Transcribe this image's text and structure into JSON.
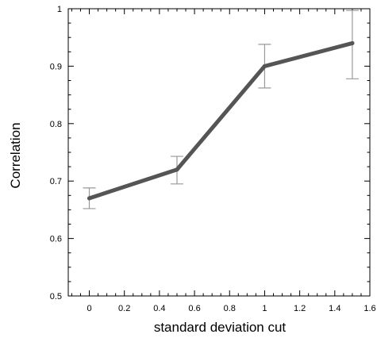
{
  "chart_data": {
    "type": "line",
    "title": "",
    "xlabel": "standard deviation  cut",
    "ylabel": "Correlation",
    "xlim": [
      -0.12,
      1.6
    ],
    "ylim": [
      0.5,
      1.0
    ],
    "x_ticks": [
      {
        "value": 0,
        "label": "0"
      },
      {
        "value": 0.2,
        "label": "0.2"
      },
      {
        "value": 0.4,
        "label": "0.4"
      },
      {
        "value": 0.6,
        "label": "0.6"
      },
      {
        "value": 0.8,
        "label": "0.8"
      },
      {
        "value": 1.0,
        "label": "1"
      },
      {
        "value": 1.2,
        "label": "1.2"
      },
      {
        "value": 1.4,
        "label": "1.4"
      },
      {
        "value": 1.6,
        "label": "1.6"
      }
    ],
    "y_ticks": [
      {
        "value": 0.5,
        "label": "0.5"
      },
      {
        "value": 0.6,
        "label": "0.6"
      },
      {
        "value": 0.7,
        "label": "0.7"
      },
      {
        "value": 0.8,
        "label": "0.8"
      },
      {
        "value": 0.9,
        "label": "0.9"
      },
      {
        "value": 1.0,
        "label": "1"
      }
    ],
    "x_minor_step": 0.05,
    "y_minor_step": 0.025,
    "grid": false,
    "legend": "none",
    "series": [
      {
        "x": [
          0,
          0.5,
          1.0,
          1.5
        ],
        "y": [
          0.67,
          0.72,
          0.9,
          0.94
        ],
        "error_low": [
          0.652,
          0.695,
          0.862,
          0.878
        ],
        "error_high": [
          0.688,
          0.743,
          0.938,
          0.997
        ],
        "color": "#555555"
      }
    ],
    "errorbar_color": "#999999",
    "axis_color": "#000000"
  }
}
